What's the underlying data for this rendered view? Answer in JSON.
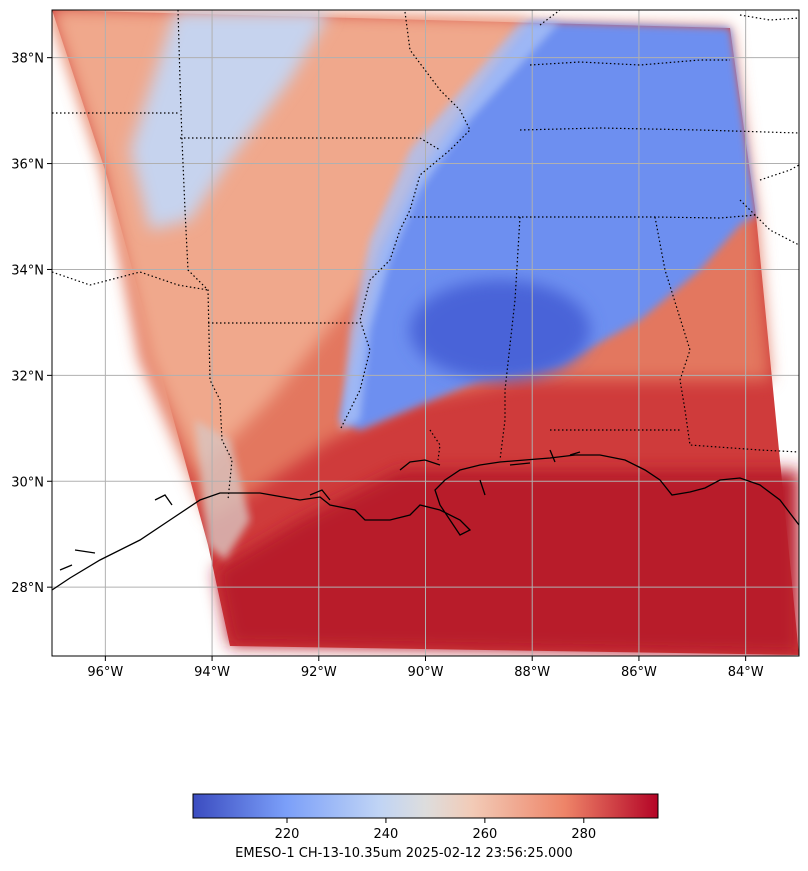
{
  "map": {
    "lon_range": [
      -97,
      -83
    ],
    "lat_range": [
      26.7,
      38.9
    ],
    "lon_ticks": [
      {
        "value": -96,
        "label": "96°W"
      },
      {
        "value": -94,
        "label": "94°W"
      },
      {
        "value": -92,
        "label": "92°W"
      },
      {
        "value": -90,
        "label": "90°W"
      },
      {
        "value": -88,
        "label": "88°W"
      },
      {
        "value": -86,
        "label": "86°W"
      },
      {
        "value": -84,
        "label": "84°W"
      }
    ],
    "lat_ticks": [
      {
        "value": 28,
        "label": "28°N"
      },
      {
        "value": 30,
        "label": "30°N"
      },
      {
        "value": 32,
        "label": "32°N"
      },
      {
        "value": 34,
        "label": "34°N"
      },
      {
        "value": 36,
        "label": "36°N"
      },
      {
        "value": 38,
        "label": "38°N"
      }
    ],
    "gridlines": true,
    "colormap": "coolwarm"
  },
  "colorbar": {
    "range": [
      201,
      295
    ],
    "ticks": [
      {
        "value": 220,
        "label": "220"
      },
      {
        "value": 240,
        "label": "240"
      },
      {
        "value": 260,
        "label": "260"
      },
      {
        "value": 280,
        "label": "280"
      }
    ],
    "colors": [
      "#3b4cc0",
      "#7b9ff9",
      "#c0d4f5",
      "#dddddd",
      "#f2cbb7",
      "#ee8468",
      "#b40426"
    ]
  },
  "caption": "EMESO-1 CH-13-10.35um 2025-02-12 23:56:25.000"
}
